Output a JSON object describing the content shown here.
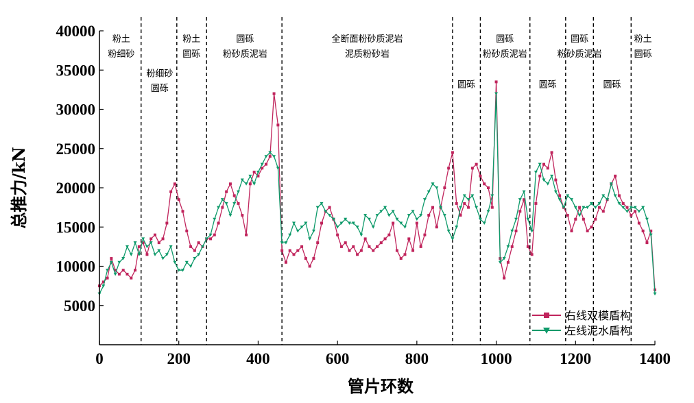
{
  "chart_data": {
    "type": "line",
    "title": "",
    "xlabel": "管片环数",
    "ylabel": "总推力/kN",
    "xlim": [
      0,
      1400
    ],
    "ylim": [
      0,
      40000
    ],
    "xticks": [
      "0",
      "200",
      "400",
      "600",
      "800",
      "1000",
      "1200",
      "1400"
    ],
    "yticks": [
      "5000",
      "10000",
      "15000",
      "20000",
      "25000",
      "30000",
      "35000",
      "40000"
    ],
    "grid": false,
    "legend_position": "bottom-right",
    "boundaries": [
      105,
      195,
      270,
      460,
      890,
      960,
      1085,
      1175,
      1245,
      1340
    ],
    "zones": [
      {
        "lines": [
          "粉土",
          "粉细砂"
        ],
        "x": 55,
        "y": [
          38600,
          36700
        ]
      },
      {
        "lines": [
          "粉细砂",
          "圆砾"
        ],
        "x": 152,
        "y": [
          34200,
          32300
        ]
      },
      {
        "lines": [
          "粉土",
          "圆砾"
        ],
        "x": 232,
        "y": [
          38600,
          36700
        ]
      },
      {
        "lines": [
          "圆砾",
          "粉砂质泥岩"
        ],
        "x": 367,
        "y": [
          38600,
          36700
        ]
      },
      {
        "lines": [
          "全断面粉砂质泥岩",
          "泥质粉砂岩"
        ],
        "x": 675,
        "y": [
          38600,
          36700
        ]
      },
      {
        "lines": [
          "圆砾"
        ],
        "x": 925,
        "y": [
          32800
        ]
      },
      {
        "lines": [
          "圆砾",
          "粉砂质泥岩"
        ],
        "x": 1022,
        "y": [
          38600,
          36700
        ]
      },
      {
        "lines": [
          "圆砾"
        ],
        "x": 1130,
        "y": [
          32800
        ]
      },
      {
        "lines": [
          "圆砾",
          "粉砂质泥岩"
        ],
        "x": 1210,
        "y": [
          38600,
          36700
        ]
      },
      {
        "lines": [
          "圆砾"
        ],
        "x": 1292,
        "y": [
          32800
        ]
      },
      {
        "lines": [
          "粉土",
          "圆砾"
        ],
        "x": 1370,
        "y": [
          38600,
          36700
        ]
      }
    ],
    "series": [
      {
        "name": "右线双模盾构",
        "color": "#c0245c",
        "marker": "square",
        "x": [
          0,
          10,
          20,
          30,
          40,
          50,
          60,
          70,
          80,
          90,
          100,
          110,
          120,
          130,
          140,
          150,
          160,
          170,
          180,
          190,
          200,
          210,
          220,
          230,
          240,
          250,
          260,
          270,
          280,
          290,
          300,
          310,
          320,
          330,
          340,
          350,
          360,
          370,
          380,
          390,
          400,
          410,
          420,
          430,
          440,
          450,
          460,
          470,
          480,
          490,
          500,
          510,
          520,
          530,
          540,
          550,
          560,
          570,
          580,
          590,
          600,
          610,
          620,
          630,
          640,
          650,
          660,
          670,
          680,
          690,
          700,
          710,
          720,
          730,
          740,
          750,
          760,
          770,
          780,
          790,
          800,
          810,
          820,
          830,
          840,
          850,
          860,
          870,
          880,
          890,
          900,
          910,
          920,
          930,
          940,
          950,
          960,
          970,
          980,
          990,
          1000,
          1010,
          1020,
          1030,
          1040,
          1050,
          1060,
          1070,
          1080,
          1090,
          1100,
          1110,
          1120,
          1130,
          1140,
          1150,
          1160,
          1170,
          1180,
          1190,
          1200,
          1210,
          1220,
          1230,
          1240,
          1250,
          1260,
          1270,
          1280,
          1290,
          1300,
          1310,
          1320,
          1330,
          1340,
          1350,
          1360,
          1370,
          1380,
          1390,
          1400
        ],
        "values": [
          7500,
          8000,
          8500,
          11000,
          9500,
          9000,
          9500,
          9000,
          8500,
          9500,
          12500,
          13000,
          11500,
          13500,
          14000,
          13000,
          13500,
          15500,
          19500,
          20500,
          18500,
          17000,
          14500,
          12500,
          12000,
          13000,
          12500,
          13500,
          13500,
          14000,
          15500,
          17500,
          19500,
          20500,
          19000,
          18000,
          16500,
          14000,
          20500,
          22000,
          21500,
          22500,
          23000,
          24000,
          32000,
          28000,
          12000,
          10500,
          12000,
          11500,
          12000,
          12500,
          11000,
          10000,
          11000,
          13000,
          15500,
          17000,
          17500,
          16000,
          14000,
          12500,
          13000,
          12000,
          12500,
          11500,
          12000,
          13500,
          12500,
          12000,
          12500,
          13000,
          13500,
          14000,
          15500,
          12000,
          11000,
          11500,
          13500,
          12000,
          15500,
          12500,
          14000,
          16500,
          17500,
          15000,
          17500,
          20000,
          22500,
          24500,
          18000,
          16500,
          18000,
          17500,
          22500,
          23000,
          21500,
          20500,
          20000,
          17500,
          33500,
          11000,
          8500,
          10500,
          12500,
          14500,
          17000,
          18500,
          12500,
          11500,
          18000,
          21500,
          23000,
          22500,
          24500,
          21000,
          19000,
          17500,
          16500,
          14500,
          16000,
          17500,
          16000,
          14500,
          15000,
          16000,
          17500,
          17000,
          18500,
          20500,
          21500,
          19000,
          18000,
          17500,
          16500,
          17000,
          15500,
          14500,
          13000,
          14500,
          7000
        ]
      },
      {
        "name": "左线泥水盾构",
        "color": "#0e9a6a",
        "marker": "triangle-down",
        "x": [
          0,
          10,
          20,
          30,
          40,
          50,
          60,
          70,
          80,
          90,
          100,
          110,
          120,
          130,
          140,
          150,
          160,
          170,
          180,
          190,
          200,
          210,
          220,
          230,
          240,
          250,
          260,
          270,
          280,
          290,
          300,
          310,
          320,
          330,
          340,
          350,
          360,
          370,
          380,
          390,
          400,
          410,
          420,
          430,
          440,
          450,
          460,
          470,
          480,
          490,
          500,
          510,
          520,
          530,
          540,
          550,
          560,
          570,
          580,
          590,
          600,
          610,
          620,
          630,
          640,
          650,
          660,
          670,
          680,
          690,
          700,
          710,
          720,
          730,
          740,
          750,
          760,
          770,
          780,
          790,
          800,
          810,
          820,
          830,
          840,
          850,
          860,
          870,
          880,
          890,
          900,
          910,
          920,
          930,
          940,
          950,
          960,
          970,
          980,
          990,
          1000,
          1010,
          1020,
          1030,
          1040,
          1050,
          1060,
          1070,
          1080,
          1090,
          1100,
          1110,
          1120,
          1130,
          1140,
          1150,
          1160,
          1170,
          1180,
          1190,
          1200,
          1210,
          1220,
          1230,
          1240,
          1250,
          1260,
          1270,
          1280,
          1290,
          1300,
          1310,
          1320,
          1330,
          1340,
          1350,
          1360,
          1370,
          1380,
          1390,
          1400
        ],
        "values": [
          6500,
          7500,
          9500,
          10500,
          9000,
          10500,
          11000,
          12500,
          11500,
          13000,
          11500,
          13500,
          12500,
          13000,
          11500,
          12000,
          11000,
          11500,
          12500,
          10500,
          9500,
          9500,
          10500,
          10000,
          11000,
          11500,
          12500,
          13500,
          14000,
          16000,
          17500,
          18500,
          18000,
          16500,
          18000,
          19500,
          21000,
          20500,
          21500,
          20500,
          22000,
          23000,
          24000,
          24500,
          24000,
          22500,
          13000,
          13000,
          14000,
          15500,
          14500,
          15000,
          15500,
          13500,
          14500,
          17500,
          18000,
          17000,
          16500,
          16000,
          15000,
          15500,
          16000,
          15500,
          15500,
          15000,
          14000,
          16500,
          16000,
          15000,
          16500,
          17000,
          17500,
          16500,
          17000,
          16000,
          15500,
          15000,
          16500,
          17000,
          16000,
          16500,
          18500,
          19500,
          20500,
          20000,
          17500,
          16500,
          14500,
          13500,
          15000,
          17500,
          19000,
          18500,
          19000,
          17500,
          16000,
          15500,
          17000,
          19000,
          32000,
          10500,
          11000,
          12500,
          14500,
          16000,
          18500,
          19500,
          16000,
          14500,
          22000,
          23000,
          21000,
          20500,
          21500,
          19500,
          18500,
          17500,
          19000,
          18500,
          17500,
          16500,
          17500,
          17500,
          18000,
          17500,
          18000,
          19000,
          18500,
          20500,
          19000,
          18000,
          17500,
          17000,
          17500,
          17500,
          17000,
          17500,
          16000,
          14000,
          6500
        ]
      }
    ]
  },
  "colors": {
    "axis": "#000000",
    "boundary": "#000000"
  }
}
